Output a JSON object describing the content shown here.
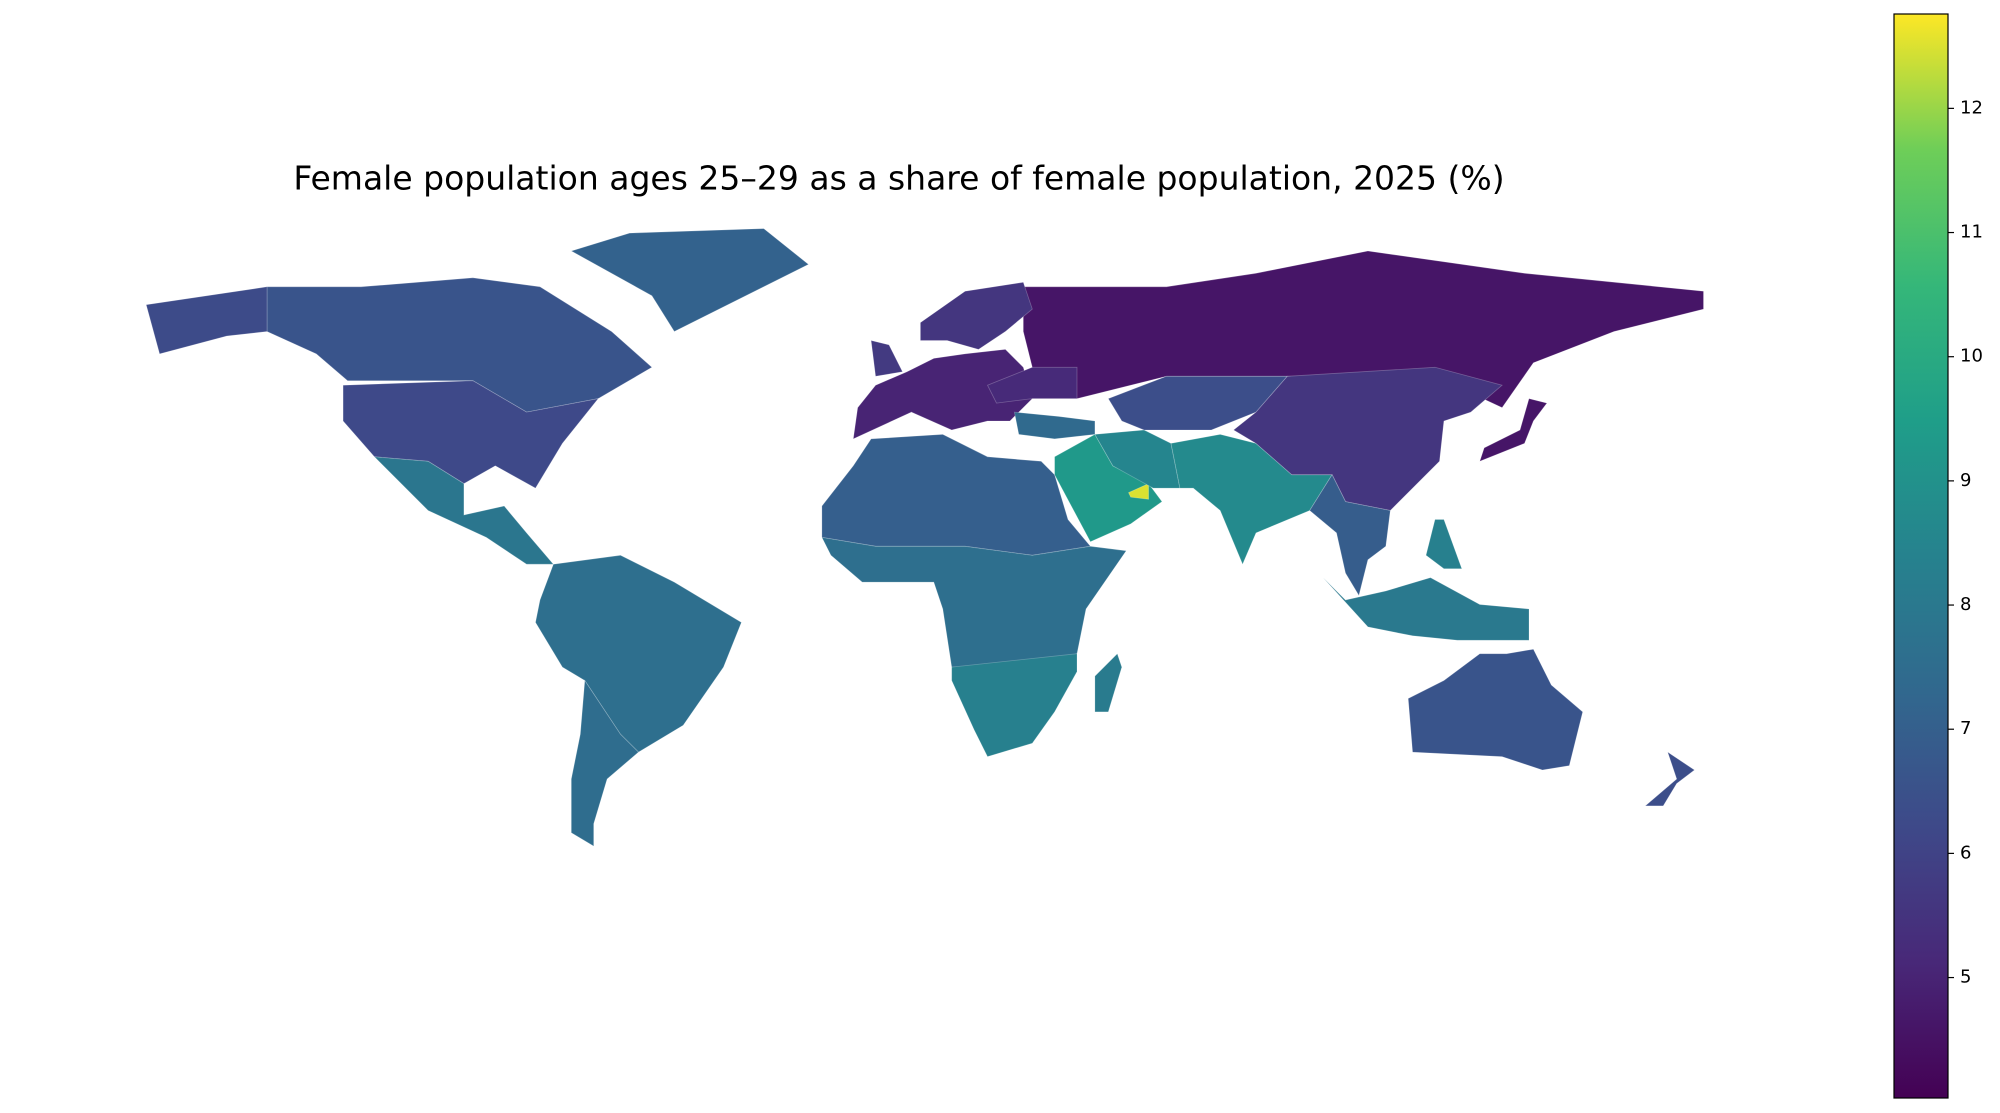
{
  "chart_data": {
    "type": "choropleth",
    "title": "Female population ages 25–29 as a share of female population, 2025 (%)",
    "colormap": "viridis",
    "clim": [
      4.03,
      12.76
    ],
    "cticks": [
      5,
      6,
      7,
      8,
      9,
      10,
      11,
      12
    ],
    "values": [
      4.6,
      6.6,
      6.3,
      6.2,
      7.1,
      7.9,
      7.6,
      7.5,
      5.0,
      5.6,
      5.7,
      7.0,
      7.6,
      8.3,
      8.1,
      9.3,
      12.5,
      8.5,
      6.4,
      8.7,
      5.6,
      6.9,
      4.6,
      8.0,
      8.3,
      6.6,
      6.4,
      5.2,
      7.4
    ]
  }
}
